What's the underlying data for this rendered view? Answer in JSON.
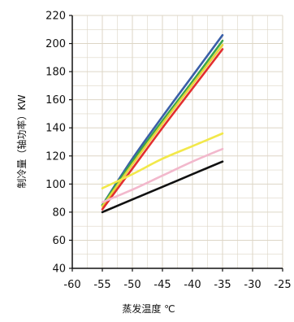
{
  "chart_data": {
    "type": "line",
    "xlabel": "蒸发温度 ℃",
    "ylabel": "制冷量（轴功率）KW",
    "xlim": [
      -60,
      -25
    ],
    "ylim": [
      40,
      220
    ],
    "x_ticks": [
      -60,
      -55,
      -50,
      -45,
      -40,
      -35,
      -30,
      -25
    ],
    "x_tick_labels": [
      "-60",
      "-55",
      "-50",
      "-45",
      "-40",
      "-35",
      "-30",
      "-25"
    ],
    "y_ticks": [
      40,
      60,
      80,
      100,
      120,
      140,
      160,
      180,
      200,
      220
    ],
    "y_tick_labels": [
      "40",
      "60",
      "80",
      "100",
      "120",
      "140",
      "160",
      "180",
      "200",
      "220"
    ],
    "grid": true,
    "series": [
      {
        "color": "#3a5fa8",
        "x": [
          -55,
          -50,
          -45,
          -40,
          -35
        ],
        "y": [
          85,
          118,
          148,
          177,
          206
        ]
      },
      {
        "color": "#3aa64a",
        "x": [
          -55,
          -50,
          -45,
          -40,
          -35
        ],
        "y": [
          85,
          116,
          145,
          173,
          202
        ]
      },
      {
        "color": "#e8d53a",
        "x": [
          -55,
          -50,
          -45,
          -40,
          -35
        ],
        "y": [
          84,
          114,
          143,
          171,
          199
        ]
      },
      {
        "color": "#e22f2f",
        "x": [
          -55,
          -50,
          -45,
          -40,
          -35
        ],
        "y": [
          82,
          111,
          140,
          168,
          196
        ]
      },
      {
        "color": "#f2e84a",
        "x": [
          -55,
          -50,
          -45,
          -40,
          -35
        ],
        "y": [
          97,
          107,
          118,
          127,
          136
        ]
      },
      {
        "color": "#f2b8cc",
        "x": [
          -55,
          -50,
          -45,
          -40,
          -35
        ],
        "y": [
          87,
          96,
          106,
          116,
          125
        ]
      },
      {
        "color": "#111111",
        "x": [
          -55,
          -50,
          -45,
          -40,
          -35
        ],
        "y": [
          80,
          89,
          98,
          107,
          116
        ]
      }
    ]
  }
}
